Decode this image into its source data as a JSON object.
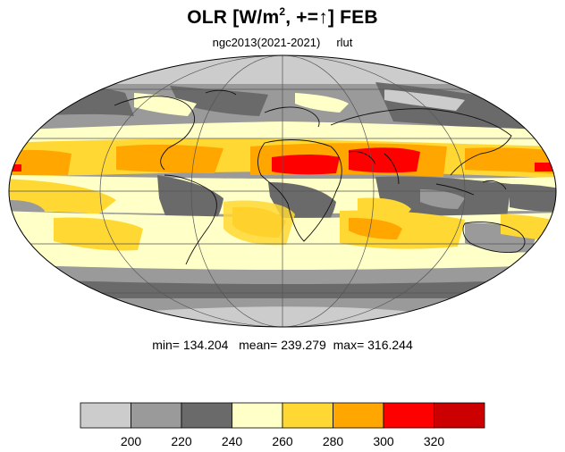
{
  "title": {
    "prefix": "OLR [W/m",
    "superscript": "2",
    "suffix": ", +=↑] FEB"
  },
  "subtitle": {
    "left": "ngc2013(2021-2021)",
    "right": "rlut"
  },
  "stats": {
    "min_label": "min=",
    "min": "134.204",
    "mean_label": "mean=",
    "mean": "239.279",
    "max_label": "max=",
    "max": "316.244"
  },
  "colorbar": {
    "ticks": [
      "200",
      "220",
      "240",
      "260",
      "280",
      "300",
      "320"
    ],
    "colors": [
      "#cccccc",
      "#9a9a9a",
      "#6a6a6a",
      "#ffffc8",
      "#ffd834",
      "#ffa600",
      "#ff0000",
      "#cc0000"
    ]
  },
  "colors": {
    "land_outline": "#111111",
    "grid": "#555555"
  }
}
